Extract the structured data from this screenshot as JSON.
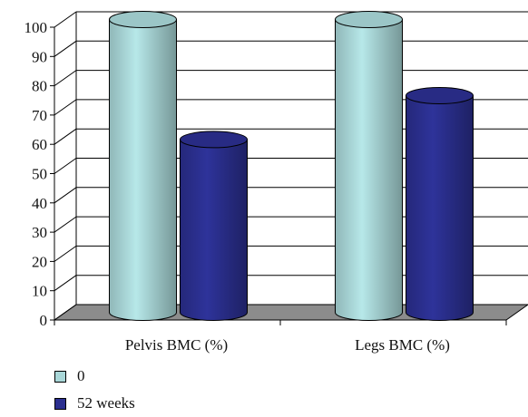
{
  "chart_data": {
    "type": "bar",
    "categories": [
      "Pelvis BMC (%)",
      "Legs BMC (%)"
    ],
    "series": [
      {
        "name": "0",
        "values": [
          100,
          100
        ],
        "color": "#a9d7d8"
      },
      {
        "name": "52 weeks",
        "values": [
          59,
          74
        ],
        "color": "#2b2f8f"
      }
    ],
    "ylim": [
      0,
      100
    ],
    "yticks": [
      0,
      10,
      20,
      30,
      40,
      50,
      60,
      70,
      80,
      90,
      100
    ],
    "grid": true,
    "legend_position": "bottom-left",
    "colors": {
      "floor": "#8c8c8c",
      "grid": "#000000"
    }
  }
}
